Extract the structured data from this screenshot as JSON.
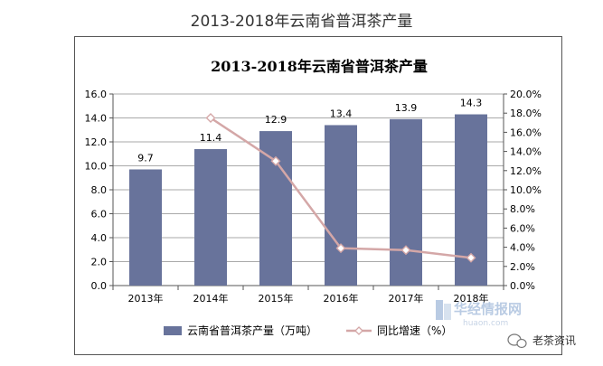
{
  "page": {
    "title": "2013-2018年云南省普洱茶产量"
  },
  "chart_data": {
    "type": "bar",
    "title": "2013-2018年云南省普洱茶产量",
    "categories": [
      "2013年",
      "2014年",
      "2015年",
      "2016年",
      "2017年",
      "2018年"
    ],
    "series": [
      {
        "name": "云南省普洱茶产量（万吨）",
        "type": "bar",
        "axis": "left",
        "values": [
          9.7,
          11.4,
          12.9,
          13.4,
          13.9,
          14.3
        ],
        "value_labels": [
          "9.7",
          "11.4",
          "12.9",
          "13.4",
          "13.9",
          "14.3"
        ],
        "color": "#68739b"
      },
      {
        "name": "同比增速（%）",
        "type": "line",
        "axis": "right",
        "values": [
          null,
          17.5,
          13.0,
          3.9,
          3.7,
          2.9
        ],
        "color": "#d4a7a7"
      }
    ],
    "y_left": {
      "min": 0,
      "max": 16,
      "step": 2,
      "tick_labels": [
        "0.0",
        "2.0",
        "4.0",
        "6.0",
        "8.0",
        "10.0",
        "12.0",
        "14.0",
        "16.0"
      ]
    },
    "y_right": {
      "min": 0,
      "max": 20,
      "step": 2,
      "tick_labels": [
        "0.0%",
        "2.0%",
        "4.0%",
        "6.0%",
        "8.0%",
        "10.0%",
        "12.0%",
        "14.0%",
        "16.0%",
        "18.0%",
        "20.0%"
      ]
    },
    "grid": "horizontal",
    "legend_position": "bottom"
  },
  "watermark": {
    "text": "华经情报网",
    "url": "huaon.com"
  },
  "credit": {
    "text": "老茶资讯"
  }
}
